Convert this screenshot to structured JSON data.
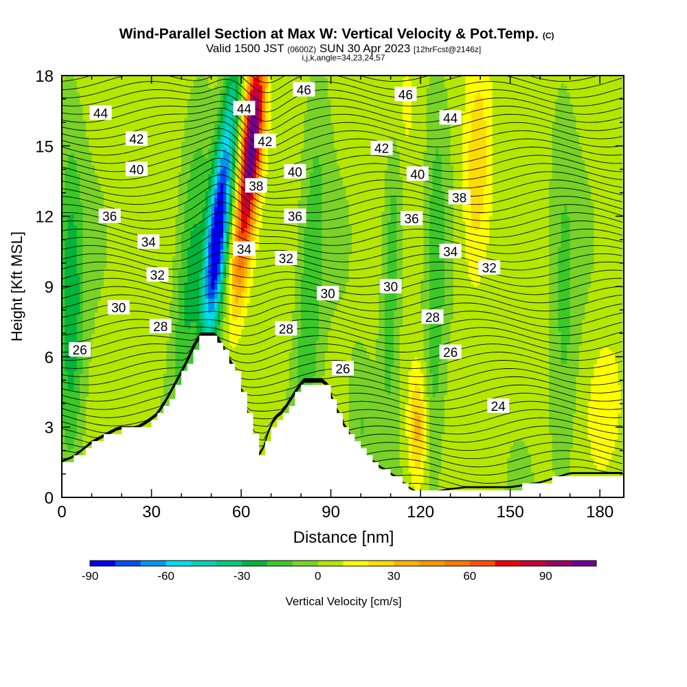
{
  "chart_data": {
    "type": "heatmap",
    "title": "Wind-Parallel Section at Max W: Vertical Velocity & Pot.Temp.",
    "title_mark": "(C)",
    "subtitle": {
      "prefix": "Valid 1500 JST",
      "utc": "(0600Z)",
      "date": "SUN 30 Apr 2023",
      "fcst": "[12hrFcst@2146z]"
    },
    "params": "i,j,k,angle=34,23,24,57",
    "xlabel": "Distance [nm]",
    "ylabel": "Height [Kft MSL]",
    "xlim": [
      0,
      188
    ],
    "ylim": [
      0,
      18
    ],
    "xticks": [
      "0",
      "30",
      "60",
      "90",
      "120",
      "150",
      "180"
    ],
    "yticks": [
      "0",
      "3",
      "6",
      "9",
      "12",
      "15",
      "18"
    ],
    "colorbar": {
      "label": "Vertical Velocity [cm/s]",
      "range": [
        -90,
        110
      ],
      "ticks": [
        "-90",
        "-60",
        "-30",
        "0",
        "30",
        "60",
        "90"
      ],
      "colors": [
        "#0000f0",
        "#0050f0",
        "#0096f0",
        "#00dcf0",
        "#00d2b4",
        "#00c882",
        "#00b43c",
        "#3cc828",
        "#78d228",
        "#b4e600",
        "#ffff00",
        "#ffdc00",
        "#ffb400",
        "#ff9600",
        "#ff7800",
        "#ff5000",
        "#f00000",
        "#c8003c",
        "#9b0069",
        "#6e0096"
      ]
    },
    "theta_labels": [
      {
        "v": "26",
        "x": 6,
        "y": 6.3
      },
      {
        "v": "28",
        "x": 33,
        "y": 7.3
      },
      {
        "v": "28",
        "x": 75,
        "y": 7.2
      },
      {
        "v": "28",
        "x": 124,
        "y": 7.7
      },
      {
        "v": "26",
        "x": 94,
        "y": 5.5
      },
      {
        "v": "26",
        "x": 130,
        "y": 6.2
      },
      {
        "v": "24",
        "x": 146,
        "y": 3.9
      },
      {
        "v": "30",
        "x": 19,
        "y": 8.1
      },
      {
        "v": "30",
        "x": 89,
        "y": 8.7
      },
      {
        "v": "30",
        "x": 110,
        "y": 9.0
      },
      {
        "v": "32",
        "x": 32,
        "y": 9.5
      },
      {
        "v": "32",
        "x": 75,
        "y": 10.2
      },
      {
        "v": "32",
        "x": 143,
        "y": 9.8
      },
      {
        "v": "34",
        "x": 29,
        "y": 10.9
      },
      {
        "v": "34",
        "x": 61,
        "y": 10.6
      },
      {
        "v": "34",
        "x": 130,
        "y": 10.5
      },
      {
        "v": "36",
        "x": 16,
        "y": 12.0
      },
      {
        "v": "36",
        "x": 78,
        "y": 12.0
      },
      {
        "v": "36",
        "x": 117,
        "y": 11.9
      },
      {
        "v": "38",
        "x": 65,
        "y": 13.3
      },
      {
        "v": "38",
        "x": 133,
        "y": 12.8
      },
      {
        "v": "40",
        "x": 25,
        "y": 14.0
      },
      {
        "v": "40",
        "x": 78,
        "y": 13.9
      },
      {
        "v": "40",
        "x": 119,
        "y": 13.8
      },
      {
        "v": "42",
        "x": 25,
        "y": 15.3
      },
      {
        "v": "42",
        "x": 68,
        "y": 15.2
      },
      {
        "v": "42",
        "x": 107,
        "y": 14.9
      },
      {
        "v": "44",
        "x": 13,
        "y": 16.4
      },
      {
        "v": "44",
        "x": 61,
        "y": 16.6
      },
      {
        "v": "44",
        "x": 130,
        "y": 16.2
      },
      {
        "v": "46",
        "x": 81,
        "y": 17.4
      },
      {
        "v": "46",
        "x": 115,
        "y": 17.2
      }
    ],
    "terrain": [
      [
        0,
        1.5
      ],
      [
        4,
        1.7
      ],
      [
        7,
        2.0
      ],
      [
        10,
        2.3
      ],
      [
        13,
        2.5
      ],
      [
        16,
        2.7
      ],
      [
        19,
        2.9
      ],
      [
        25,
        2.9
      ],
      [
        29,
        3.2
      ],
      [
        32,
        3.5
      ],
      [
        35,
        4.1
      ],
      [
        38,
        4.8
      ],
      [
        41,
        5.5
      ],
      [
        44,
        6.3
      ],
      [
        46,
        6.8
      ],
      [
        51,
        6.8
      ],
      [
        53,
        6.5
      ],
      [
        55,
        6.0
      ],
      [
        58,
        5.3
      ],
      [
        60,
        4.5
      ],
      [
        62,
        3.5
      ],
      [
        64,
        2.6
      ],
      [
        65,
        1.6
      ],
      [
        67,
        1.9
      ],
      [
        69,
        2.7
      ],
      [
        71,
        3.3
      ],
      [
        74,
        3.6
      ],
      [
        76,
        4.0
      ],
      [
        79,
        4.6
      ],
      [
        81,
        4.9
      ],
      [
        88,
        4.9
      ],
      [
        90,
        4.3
      ],
      [
        92,
        3.6
      ],
      [
        95,
        2.9
      ],
      [
        98,
        2.3
      ],
      [
        101,
        1.8
      ],
      [
        106,
        1.3
      ],
      [
        110,
        1.0
      ],
      [
        113,
        0.7
      ],
      [
        116,
        0.4
      ],
      [
        119,
        0.2
      ],
      [
        124,
        0.2
      ],
      [
        128,
        0.3
      ],
      [
        135,
        0.4
      ],
      [
        141,
        0.4
      ],
      [
        150,
        0.4
      ],
      [
        155,
        0.5
      ],
      [
        160,
        0.6
      ],
      [
        165,
        0.8
      ],
      [
        170,
        1.0
      ],
      [
        175,
        1.0
      ],
      [
        188,
        1.0
      ]
    ]
  }
}
